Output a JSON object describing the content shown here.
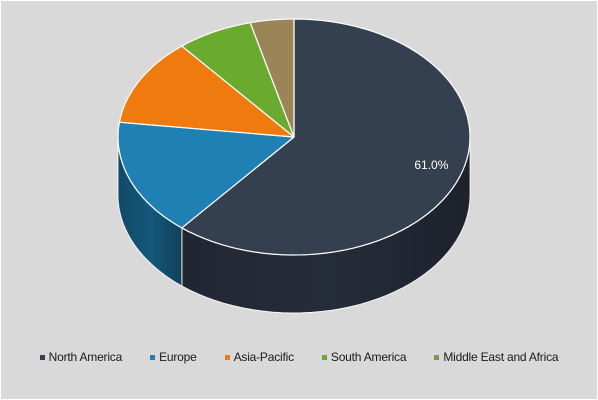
{
  "chart_data": {
    "type": "pie",
    "style": "3d",
    "categories": [
      "North America",
      "Europe",
      "Asia-Pacific",
      "South America",
      "Middle East and Africa"
    ],
    "values": [
      61.0,
      16.0,
      12.0,
      7.0,
      4.0
    ],
    "colors": [
      "#343f50",
      "#1f80b4",
      "#ef7b0e",
      "#6aaa2e",
      "#9b8557"
    ],
    "shade_colors": [
      "#262d3a",
      "#15577b",
      "#a8560a",
      "#4a7820",
      "#6c5d3d"
    ],
    "data_labels": [
      "61.0%",
      "",
      "",
      "",
      ""
    ],
    "legend_position": "bottom",
    "title": ""
  }
}
